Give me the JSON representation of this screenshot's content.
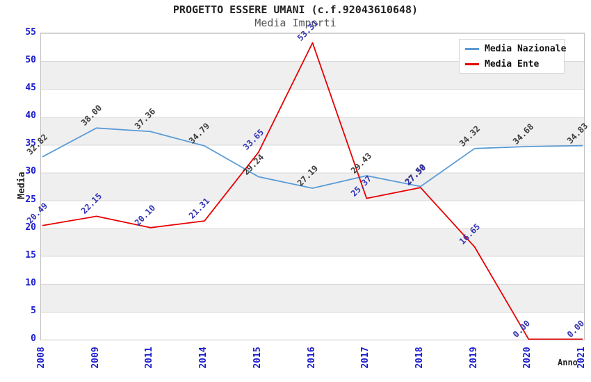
{
  "title": "PROGETTO ESSERE UMANI (c.f.92043610648)",
  "subtitle": "Media Importi",
  "axes": {
    "xlabel": "Anno",
    "ylabel": "Media",
    "y_ticks": [
      0,
      5,
      10,
      15,
      20,
      25,
      30,
      35,
      40,
      45,
      50,
      55
    ],
    "tick_color": "#1a1acc"
  },
  "legend": {
    "items": [
      {
        "label": "Media Nazionale",
        "color": "#5b9bd5"
      },
      {
        "label": "Media Ente",
        "color": "#e60000"
      }
    ]
  },
  "chart_data": {
    "type": "line",
    "title": "PROGETTO ESSERE UMANI (c.f.92043610648)",
    "subtitle": "Media Importi",
    "xlabel": "Anno",
    "ylabel": "Media",
    "ylim": [
      0,
      55
    ],
    "ytick_step": 5,
    "grid": true,
    "legend_position": "top-right",
    "categories": [
      "2008",
      "2009",
      "2011",
      "2014",
      "2015",
      "2016",
      "2017",
      "2018",
      "2019",
      "2020",
      "2021"
    ],
    "series": [
      {
        "name": "Media Nazionale",
        "color": "#5b9bd5",
        "label_color": "#3c3c3c",
        "values": [
          32.82,
          38.0,
          37.36,
          34.79,
          29.24,
          27.19,
          29.43,
          27.5,
          34.32,
          34.68,
          34.83
        ]
      },
      {
        "name": "Media Ente",
        "color": "#e60000",
        "label_color": "#3434b4",
        "values": [
          20.49,
          22.15,
          20.1,
          21.31,
          33.65,
          53.31,
          25.37,
          27.3,
          16.65,
          0.0,
          0.0
        ]
      }
    ]
  }
}
